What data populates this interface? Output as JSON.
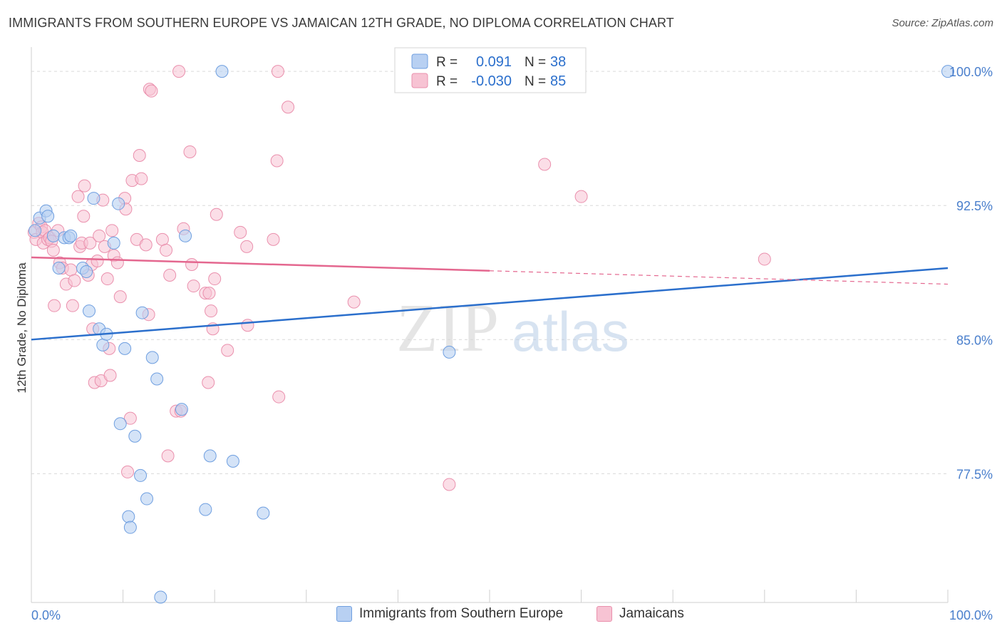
{
  "header": {
    "title": "IMMIGRANTS FROM SOUTHERN EUROPE VS JAMAICAN 12TH GRADE, NO DIPLOMA CORRELATION CHART",
    "source": "Source: ZipAtlas.com"
  },
  "watermark": {
    "zip": "ZIP",
    "atlas": "atlas"
  },
  "colors": {
    "blue_fill": "#b8d0f2",
    "blue_stroke": "#6f9fe0",
    "blue_line": "#2b6fcc",
    "pink_fill": "#f7c3d3",
    "pink_stroke": "#ea90ad",
    "pink_line": "#e4678f",
    "tick_label": "#4a7fcc",
    "grid": "#d9d9d9"
  },
  "legend": {
    "rows": [
      {
        "r_label": "R =",
        "r_value": "0.091",
        "n_label": "N =",
        "n_value": "38"
      },
      {
        "r_label": "R =",
        "r_value": "-0.030",
        "n_label": "N =",
        "n_value": "85"
      }
    ]
  },
  "chart_data": {
    "type": "scatter",
    "title": "IMMIGRANTS FROM SOUTHERN EUROPE VS JAMAICAN 12TH GRADE, NO DIPLOMA CORRELATION CHART",
    "xlabel": "",
    "ylabel": "12th Grade, No Diploma",
    "xlim": [
      0,
      100
    ],
    "ylim": [
      70.3,
      101.2
    ],
    "x_tick_labels": [
      "0.0%",
      "100.0%"
    ],
    "y_ticks": [
      77.5,
      85.0,
      92.5,
      100.0
    ],
    "y_tick_labels": [
      "77.5%",
      "85.0%",
      "92.5%",
      "100.0%"
    ],
    "grid": true,
    "legend_position": "top-center",
    "series": [
      {
        "name": "Immigrants from Southern Europe",
        "color": "#6f9fe0",
        "R": 0.091,
        "N": 38,
        "trend": {
          "x": [
            0,
            100
          ],
          "y": [
            85.0,
            89.0
          ]
        },
        "points": [
          [
            0.4,
            91.1
          ],
          [
            0.9,
            91.8
          ],
          [
            1.6,
            92.2
          ],
          [
            1.8,
            91.9
          ],
          [
            2.4,
            90.8
          ],
          [
            3.0,
            89.0
          ],
          [
            3.6,
            90.7
          ],
          [
            4.1,
            90.7
          ],
          [
            4.3,
            90.8
          ],
          [
            5.6,
            89.0
          ],
          [
            6.0,
            88.8
          ],
          [
            6.3,
            86.6
          ],
          [
            6.8,
            92.9
          ],
          [
            7.4,
            85.6
          ],
          [
            7.8,
            84.7
          ],
          [
            8.2,
            85.3
          ],
          [
            9.0,
            90.4
          ],
          [
            9.5,
            92.6
          ],
          [
            9.7,
            80.3
          ],
          [
            10.2,
            84.5
          ],
          [
            10.6,
            75.1
          ],
          [
            10.8,
            74.5
          ],
          [
            11.3,
            79.6
          ],
          [
            11.9,
            77.4
          ],
          [
            12.1,
            86.5
          ],
          [
            12.6,
            76.1
          ],
          [
            13.2,
            84.0
          ],
          [
            13.7,
            82.8
          ],
          [
            14.1,
            70.6
          ],
          [
            16.4,
            81.1
          ],
          [
            16.8,
            90.8
          ],
          [
            19.0,
            75.5
          ],
          [
            19.5,
            78.5
          ],
          [
            20.8,
            100.0
          ],
          [
            22.0,
            78.2
          ],
          [
            25.3,
            75.3
          ],
          [
            45.6,
            84.3
          ],
          [
            100.0,
            100.0
          ]
        ]
      },
      {
        "name": "Jamaicans",
        "color": "#ea90ad",
        "R": -0.03,
        "N": 85,
        "trend_solid": {
          "x": [
            0,
            50
          ],
          "y": [
            89.6,
            88.85
          ]
        },
        "trend_dashed": {
          "x": [
            50,
            100
          ],
          "y": [
            88.85,
            88.1
          ]
        },
        "points": [
          [
            0.3,
            91.0
          ],
          [
            0.5,
            90.6
          ],
          [
            0.8,
            91.5
          ],
          [
            1.1,
            91.3
          ],
          [
            1.2,
            91.0
          ],
          [
            1.3,
            90.4
          ],
          [
            1.5,
            91.1
          ],
          [
            1.8,
            90.6
          ],
          [
            2.0,
            90.7
          ],
          [
            2.2,
            90.5
          ],
          [
            2.4,
            90.0
          ],
          [
            2.5,
            86.9
          ],
          [
            2.9,
            91.1
          ],
          [
            3.1,
            89.3
          ],
          [
            3.4,
            89.0
          ],
          [
            3.8,
            88.1
          ],
          [
            4.3,
            88.9
          ],
          [
            4.5,
            86.9
          ],
          [
            4.7,
            88.3
          ],
          [
            5.1,
            93.0
          ],
          [
            5.3,
            90.2
          ],
          [
            5.5,
            90.4
          ],
          [
            5.7,
            91.9
          ],
          [
            5.8,
            93.6
          ],
          [
            6.2,
            88.6
          ],
          [
            6.4,
            90.4
          ],
          [
            6.6,
            89.2
          ],
          [
            6.7,
            85.6
          ],
          [
            6.9,
            82.6
          ],
          [
            7.2,
            89.4
          ],
          [
            7.4,
            90.8
          ],
          [
            7.6,
            82.7
          ],
          [
            7.8,
            92.8
          ],
          [
            8.0,
            90.2
          ],
          [
            8.3,
            88.4
          ],
          [
            8.5,
            84.5
          ],
          [
            8.6,
            83.0
          ],
          [
            8.8,
            91.1
          ],
          [
            9.0,
            89.7
          ],
          [
            9.4,
            89.3
          ],
          [
            9.7,
            87.4
          ],
          [
            10.2,
            92.9
          ],
          [
            10.3,
            92.3
          ],
          [
            10.5,
            77.6
          ],
          [
            10.8,
            80.6
          ],
          [
            11.0,
            93.9
          ],
          [
            11.5,
            90.6
          ],
          [
            11.8,
            95.3
          ],
          [
            12.0,
            94.0
          ],
          [
            12.5,
            90.3
          ],
          [
            12.8,
            86.4
          ],
          [
            12.9,
            99.0
          ],
          [
            13.1,
            98.9
          ],
          [
            14.3,
            90.6
          ],
          [
            14.7,
            90.0
          ],
          [
            14.9,
            78.5
          ],
          [
            15.1,
            88.6
          ],
          [
            15.8,
            81.0
          ],
          [
            16.1,
            100.0
          ],
          [
            16.3,
            81.0
          ],
          [
            16.6,
            91.2
          ],
          [
            17.3,
            95.5
          ],
          [
            17.5,
            89.2
          ],
          [
            17.7,
            88.0
          ],
          [
            19.0,
            87.6
          ],
          [
            19.3,
            82.6
          ],
          [
            19.4,
            87.6
          ],
          [
            19.6,
            86.6
          ],
          [
            19.8,
            85.6
          ],
          [
            20.0,
            88.4
          ],
          [
            20.2,
            92.0
          ],
          [
            21.4,
            84.4
          ],
          [
            22.8,
            91.0
          ],
          [
            23.5,
            90.2
          ],
          [
            23.6,
            85.8
          ],
          [
            26.4,
            90.6
          ],
          [
            26.8,
            95.0
          ],
          [
            26.9,
            100.0
          ],
          [
            27.0,
            81.8
          ],
          [
            28.0,
            98.0
          ],
          [
            35.2,
            87.1
          ],
          [
            45.6,
            76.9
          ],
          [
            56.0,
            94.8
          ],
          [
            60.0,
            93.0
          ],
          [
            80.0,
            89.5
          ]
        ]
      }
    ]
  }
}
